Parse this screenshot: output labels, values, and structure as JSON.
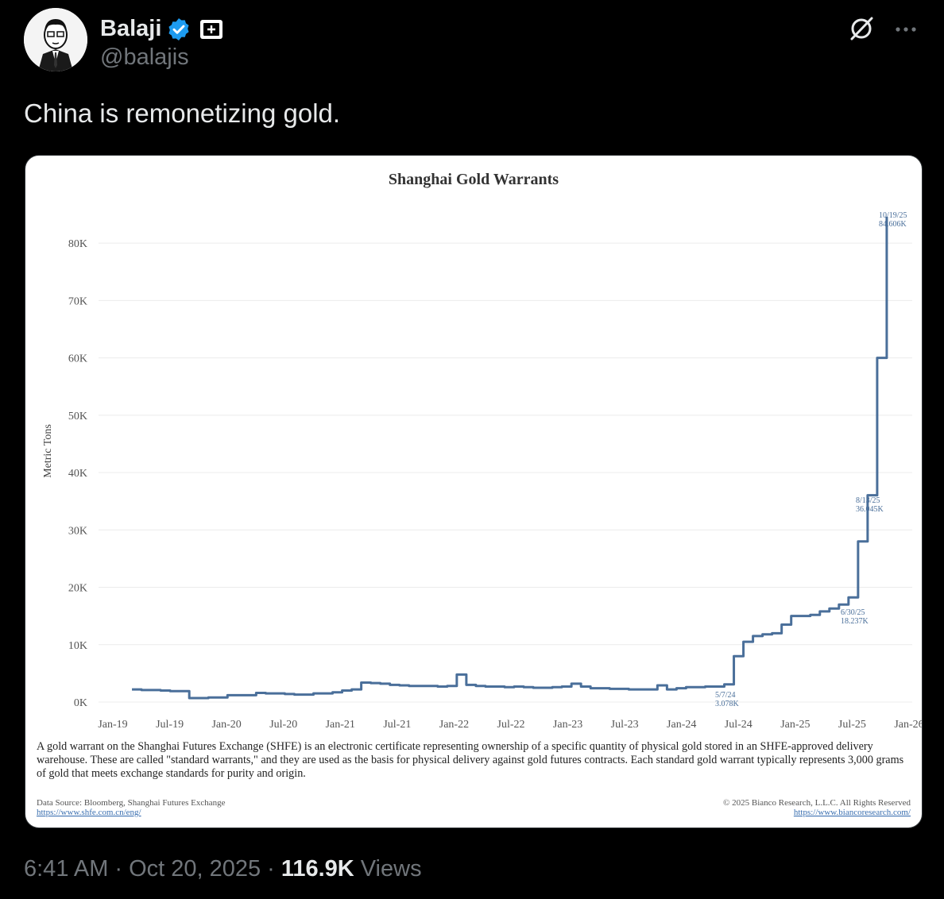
{
  "author": {
    "name": "Balaji",
    "handle": "@balajis"
  },
  "tweet": {
    "text": "China is remonetizing gold.",
    "time": "6:41 AM",
    "date": "Oct 20, 2025",
    "views_count": "116.9K",
    "views_label": "Views",
    "sep": "·"
  },
  "colors": {
    "line": "#4a6f9a",
    "verified": "#1d9bf0"
  },
  "icons": [
    "verified-badge-icon",
    "affiliate-badge-icon",
    "grok-icon",
    "more-icon"
  ],
  "chart_data": {
    "type": "line",
    "title": "Shanghai Gold Warrants",
    "ylabel": "Metric Tons",
    "xlabel": "",
    "ylim": [
      0,
      85000
    ],
    "y_ticks": [
      0,
      10000,
      20000,
      30000,
      40000,
      50000,
      60000,
      70000,
      80000
    ],
    "y_tick_labels": [
      "0K",
      "10K",
      "20K",
      "30K",
      "40K",
      "50K",
      "60K",
      "70K",
      "80K"
    ],
    "x_tick_labels": [
      "Jan-19",
      "Jul-19",
      "Jan-20",
      "Jul-20",
      "Jan-21",
      "Jul-21",
      "Jan-22",
      "Jul-22",
      "Jan-23",
      "Jul-23",
      "Jan-24",
      "Jul-24",
      "Jan-25",
      "Jul-25",
      "Jan-26"
    ],
    "x_range": [
      "2019-01",
      "2026-01"
    ],
    "grid": "horizontal",
    "series": [
      {
        "x": [
          "2019-03",
          "2019-04",
          "2019-05",
          "2019-06",
          "2019-07",
          "2019-08",
          "2019-09",
          "2019-10",
          "2019-11",
          "2019-12",
          "2020-01",
          "2020-02",
          "2020-03",
          "2020-04",
          "2020-05",
          "2020-06",
          "2020-07",
          "2020-08",
          "2020-09",
          "2020-10",
          "2020-11",
          "2020-12",
          "2021-01",
          "2021-02",
          "2021-03",
          "2021-04",
          "2021-05",
          "2021-06",
          "2021-07",
          "2021-08",
          "2021-09",
          "2021-10",
          "2021-11",
          "2021-12",
          "2022-01",
          "2022-02",
          "2022-03",
          "2022-04",
          "2022-05",
          "2022-06",
          "2022-07",
          "2022-08",
          "2022-09",
          "2022-10",
          "2022-11",
          "2022-12",
          "2023-01",
          "2023-02",
          "2023-03",
          "2023-04",
          "2023-05",
          "2023-06",
          "2023-07",
          "2023-08",
          "2023-09",
          "2023-10",
          "2023-11",
          "2023-12",
          "2024-01",
          "2024-02",
          "2024-03",
          "2024-04",
          "2024-05",
          "2024-06",
          "2024-07",
          "2024-08",
          "2024-09",
          "2024-10",
          "2024-11",
          "2024-12",
          "2025-01",
          "2025-02",
          "2025-03",
          "2025-04",
          "2025-05",
          "2025-06",
          "2025-07",
          "2025-08",
          "2025-09",
          "2025-10"
        ],
        "values": [
          2200,
          2100,
          2100,
          2000,
          1900,
          1900,
          700,
          700,
          800,
          800,
          1200,
          1200,
          1200,
          1600,
          1500,
          1500,
          1400,
          1300,
          1300,
          1500,
          1500,
          1700,
          2000,
          2200,
          3400,
          3300,
          3200,
          3000,
          2900,
          2800,
          2800,
          2800,
          2700,
          2800,
          4800,
          3000,
          2800,
          2700,
          2700,
          2600,
          2700,
          2600,
          2500,
          2500,
          2600,
          2700,
          3200,
          2700,
          2400,
          2400,
          2300,
          2300,
          2200,
          2200,
          2200,
          2900,
          2200,
          2400,
          2600,
          2600,
          2700,
          2700,
          3078,
          8000,
          10500,
          11500,
          11800,
          12000,
          13500,
          15000,
          15000,
          15200,
          15800,
          16300,
          17000,
          18237,
          28000,
          36045,
          60000,
          84606
        ]
      }
    ],
    "annotations": [
      {
        "date": "5/7/24",
        "value": "3.078K"
      },
      {
        "date": "6/30/25",
        "value": "18.237K"
      },
      {
        "date": "8/13/25",
        "value": "36.045K"
      },
      {
        "date": "10/19/25",
        "value": "84.606K"
      }
    ],
    "description": "A gold warrant on the Shanghai Futures Exchange (SHFE) is an electronic certificate representing ownership of a specific quantity of physical gold stored in an SHFE-approved delivery warehouse. These are called \"standard warrants,\" and they are used as the basis for physical delivery against gold futures contracts. Each standard gold warrant typically represents 3,000 grams of gold that meets exchange standards for purity and origin.",
    "source": "Data Source: Bloomberg, Shanghai Futures Exchange",
    "source_url": "https://www.shfe.com.cn/eng/",
    "copyright": "© 2025 Bianco Research, L.L.C. All Rights Reserved",
    "copyright_url": "https://www.biancoresearch.com/"
  }
}
